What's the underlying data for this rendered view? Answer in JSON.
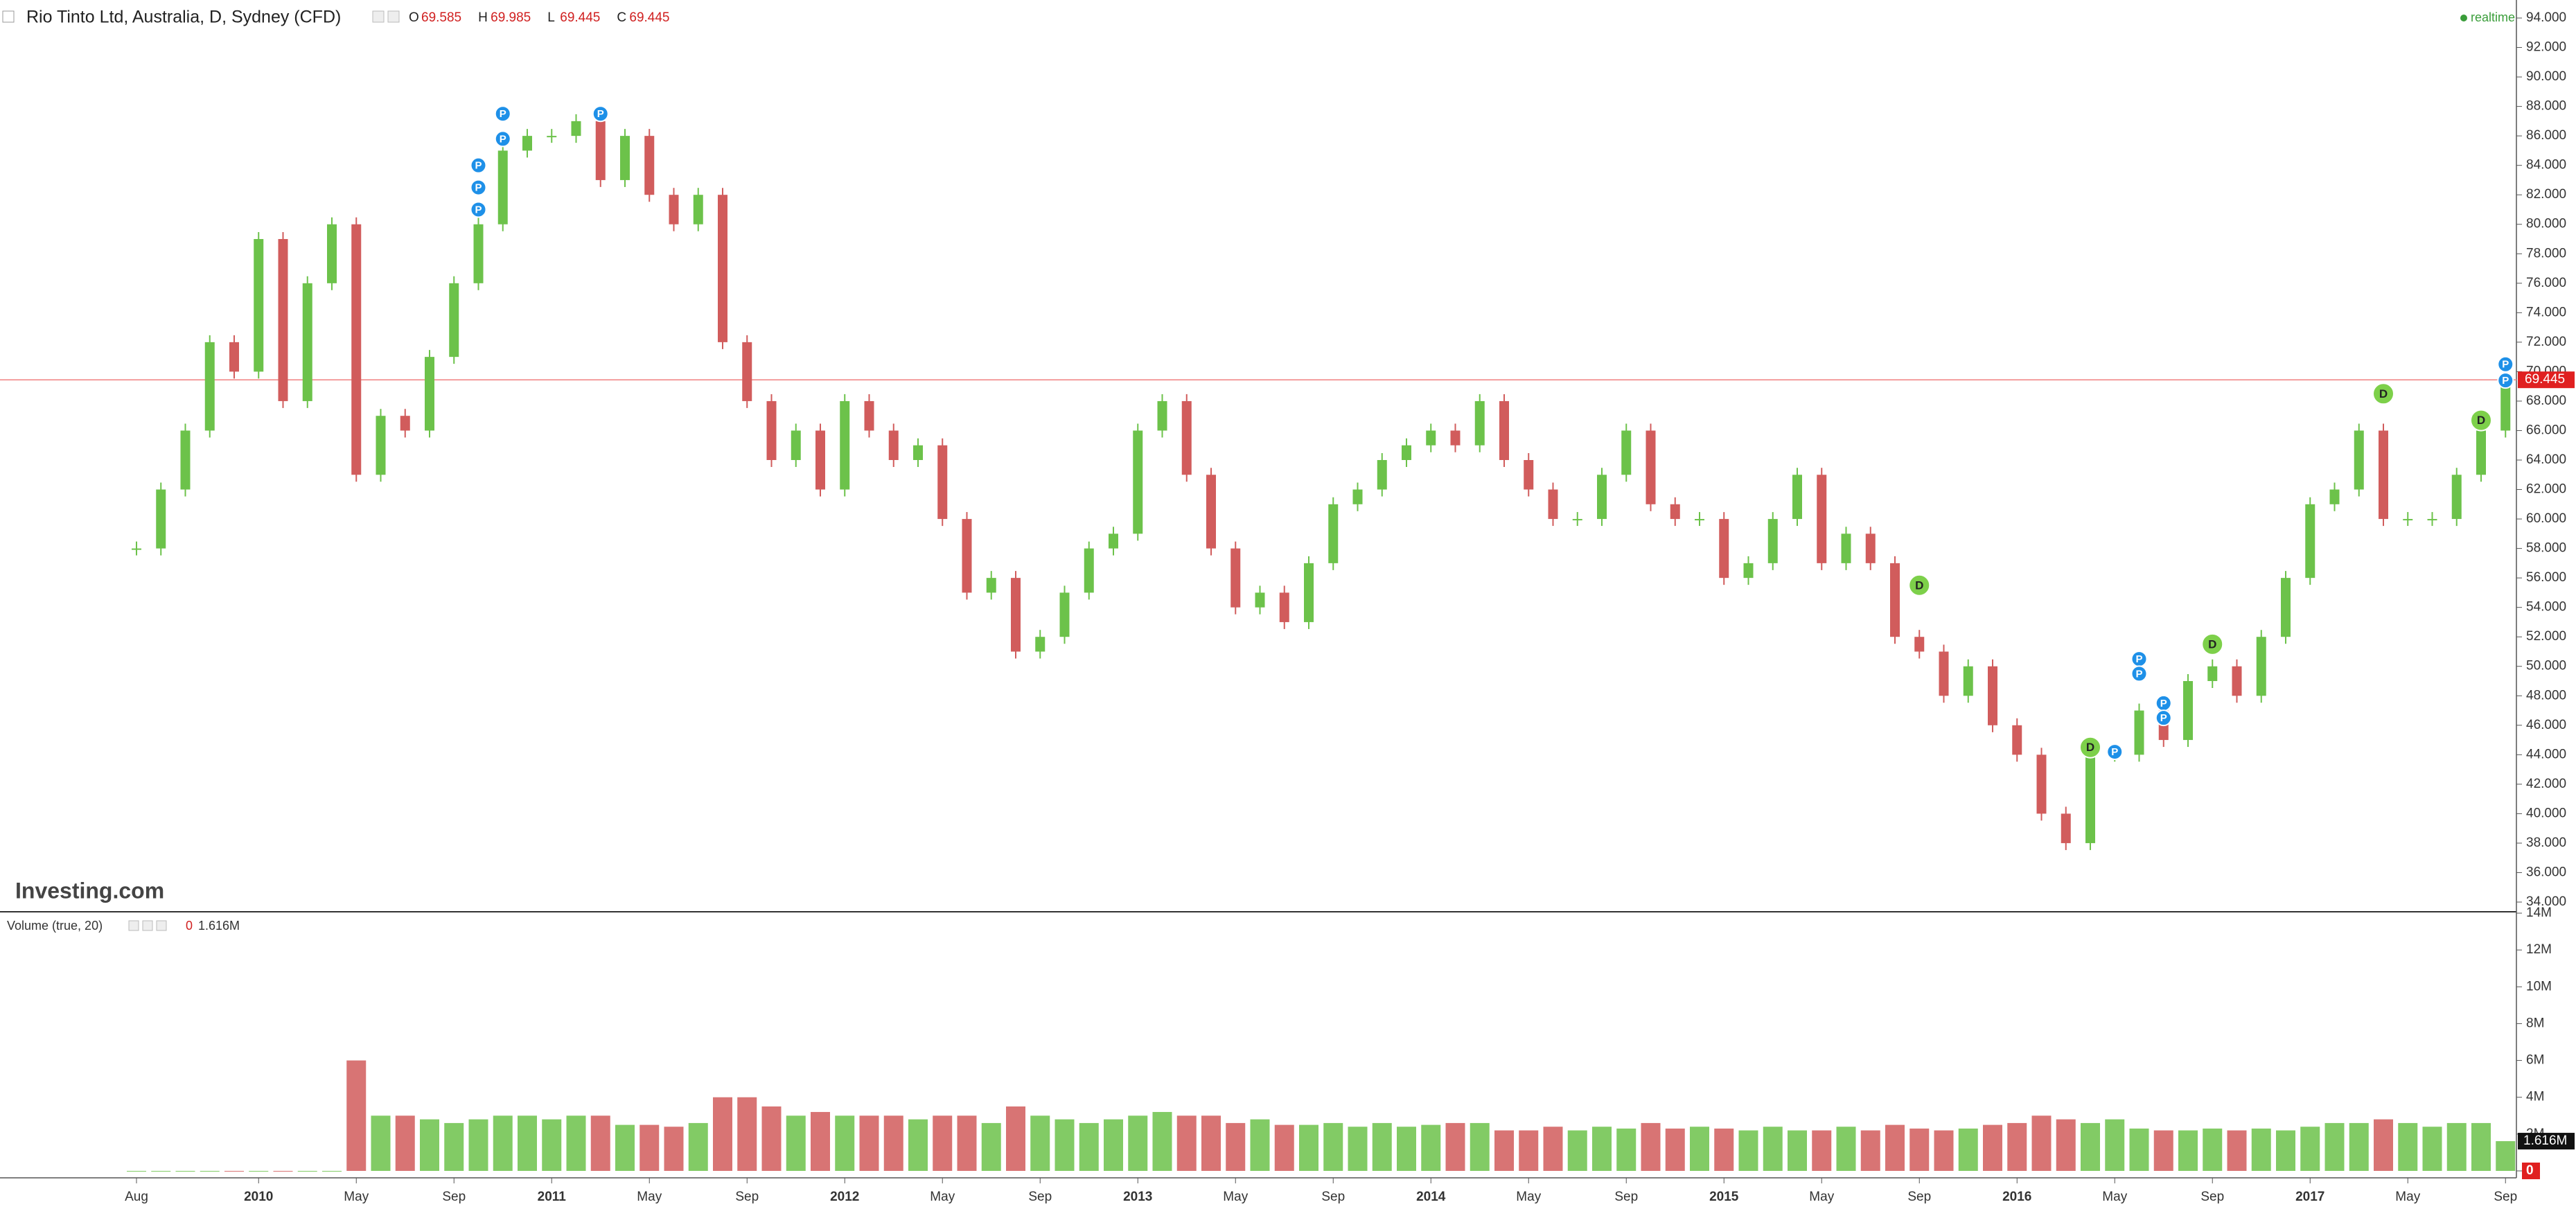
{
  "chart_data": {
    "type": "candlestick",
    "title": "Rio Tinto Ltd, Australia, D, Sydney (CFD)",
    "ohlc": [
      {
        "label": "O",
        "value": 69.585
      },
      {
        "label": "H",
        "value": 69.985
      },
      {
        "label": "L",
        "value": 69.445
      },
      {
        "label": "C",
        "value": 69.445
      }
    ],
    "status": "realtime",
    "logo": "Investing.com",
    "last_price": 69.445,
    "up_color": "#6cc24a",
    "down_color": "#d15c5c",
    "categories": [
      "Aug",
      null,
      null,
      null,
      null,
      "2010",
      null,
      null,
      null,
      "May",
      null,
      null,
      null,
      "Sep",
      null,
      null,
      null,
      "2011",
      null,
      null,
      null,
      "May",
      null,
      null,
      null,
      "Sep",
      null,
      null,
      null,
      "2012",
      null,
      null,
      null,
      "May",
      null,
      null,
      null,
      "Sep",
      null,
      null,
      null,
      "2013",
      null,
      null,
      null,
      "May",
      null,
      null,
      null,
      "Sep",
      null,
      null,
      null,
      "2014",
      null,
      null,
      null,
      "May",
      null,
      null,
      null,
      "Sep",
      null,
      null,
      null,
      "2015",
      null,
      null,
      null,
      "May",
      null,
      null,
      null,
      "Sep",
      null,
      null,
      null,
      "2016",
      null,
      null,
      null,
      "May",
      null,
      null,
      null,
      "Sep",
      null,
      null,
      null,
      "2017",
      null,
      null,
      null,
      "May",
      null,
      null,
      null,
      "Sep"
    ],
    "values": [
      58,
      62,
      66,
      72,
      70,
      79,
      68,
      76,
      80,
      63,
      67,
      66,
      71,
      76,
      80,
      85,
      86,
      86,
      87,
      83,
      86,
      82,
      80,
      82,
      72,
      68,
      64,
      66,
      62,
      68,
      66,
      64,
      65,
      60,
      55,
      56,
      51,
      52,
      55,
      58,
      59,
      66,
      68,
      63,
      58,
      54,
      55,
      53,
      57,
      61,
      62,
      64,
      65,
      66,
      65,
      68,
      64,
      62,
      60,
      60,
      63,
      66,
      61,
      60,
      60,
      56,
      57,
      60,
      63,
      57,
      59,
      57,
      52,
      51,
      48,
      50,
      46,
      44,
      40,
      38,
      44,
      44,
      47,
      45,
      49,
      50,
      48,
      52,
      56,
      61,
      62,
      66,
      60,
      60,
      60,
      63,
      66,
      69.445
    ],
    "ylim": [
      34,
      94
    ],
    "yticks": [
      {
        "value": 34,
        "label": "34.000"
      },
      {
        "value": 36,
        "label": "36.000"
      },
      {
        "value": 38,
        "label": "38.000"
      },
      {
        "value": 40,
        "label": "40.000"
      },
      {
        "value": 42,
        "label": "42.000"
      },
      {
        "value": 44,
        "label": "44.000"
      },
      {
        "value": 46,
        "label": "46.000"
      },
      {
        "value": 48,
        "label": "48.000"
      },
      {
        "value": 50,
        "label": "50.000"
      },
      {
        "value": 52,
        "label": "52.000"
      },
      {
        "value": 54,
        "label": "54.000"
      },
      {
        "value": 56,
        "label": "56.000"
      },
      {
        "value": 58,
        "label": "58.000"
      },
      {
        "value": 60,
        "label": "60.000"
      },
      {
        "value": 62,
        "label": "62.000"
      },
      {
        "value": 64,
        "label": "64.000"
      },
      {
        "value": 66,
        "label": "66.000"
      },
      {
        "value": 68,
        "label": "68.000"
      },
      {
        "value": 70,
        "label": "70.000"
      },
      {
        "value": 72,
        "label": "72.000"
      },
      {
        "value": 74,
        "label": "74.000"
      },
      {
        "value": 76,
        "label": "76.000"
      },
      {
        "value": 78,
        "label": "78.000"
      },
      {
        "value": 80,
        "label": "80.000"
      },
      {
        "value": 82,
        "label": "82.000"
      },
      {
        "value": 84,
        "label": "84.000"
      },
      {
        "value": 86,
        "label": "86.000"
      },
      {
        "value": 88,
        "label": "88.000"
      },
      {
        "value": 90,
        "label": "90.000"
      },
      {
        "value": 92,
        "label": "92.000"
      },
      {
        "value": 94,
        "label": "94.000"
      }
    ],
    "annotations": [
      {
        "text": "P",
        "month": 14,
        "value": 81
      },
      {
        "text": "P",
        "month": 14,
        "value": 82.5
      },
      {
        "text": "P",
        "month": 14,
        "value": 84
      },
      {
        "text": "P",
        "month": 15,
        "value": 85.8
      },
      {
        "text": "P",
        "month": 15,
        "value": 87.5
      },
      {
        "text": "P",
        "month": 19,
        "value": 87.5
      },
      {
        "text": "D",
        "month": 73,
        "value": 55.5
      },
      {
        "text": "D",
        "month": 80,
        "value": 44.5
      },
      {
        "text": "P",
        "month": 81,
        "value": 44.2
      },
      {
        "text": "P",
        "month": 82,
        "value": 50.5
      },
      {
        "text": "P",
        "month": 82,
        "value": 49.5
      },
      {
        "text": "P",
        "month": 83,
        "value": 47.5
      },
      {
        "text": "P",
        "month": 83,
        "value": 46.5
      },
      {
        "text": "D",
        "month": 85,
        "value": 51.5
      },
      {
        "text": "D",
        "month": 92,
        "value": 68.5
      },
      {
        "text": "D",
        "month": 96,
        "value": 66.7
      },
      {
        "text": "P",
        "month": 97,
        "value": 70.5
      },
      {
        "text": "P",
        "month": 97,
        "value": 69.4
      }
    ],
    "volume": {
      "label": "Volume (true, 20)",
      "legend_prefix": "0",
      "last": {
        "value": 1.616,
        "label": "1.616M"
      },
      "values": [
        0,
        0,
        0,
        0,
        0,
        0,
        0,
        0,
        0,
        6,
        3,
        3,
        2.8,
        2.6,
        2.8,
        3,
        3,
        2.8,
        3,
        3,
        2.5,
        2.5,
        2.4,
        2.6,
        4,
        4,
        3.5,
        3,
        3.2,
        3,
        3,
        3,
        2.8,
        3,
        3,
        2.6,
        3.5,
        3,
        2.8,
        2.6,
        2.8,
        3,
        3.2,
        3,
        3,
        2.6,
        2.8,
        2.5,
        2.5,
        2.6,
        2.4,
        2.6,
        2.4,
        2.5,
        2.6,
        2.6,
        2.2,
        2.2,
        2.4,
        2.2,
        2.4,
        2.3,
        2.6,
        2.3,
        2.4,
        2.3,
        2.2,
        2.4,
        2.2,
        2.2,
        2.4,
        2.2,
        2.5,
        2.3,
        2.2,
        2.3,
        2.5,
        2.6,
        3,
        2.8,
        2.6,
        2.8,
        2.3,
        2.2,
        2.2,
        2.3,
        2.2,
        2.3,
        2.2,
        2.4,
        2.6,
        2.6,
        2.8,
        2.6,
        2.4,
        2.6,
        2.6,
        1.616
      ],
      "ylim": [
        0,
        14
      ],
      "yticks": [
        0,
        {
          "value": 2,
          "label": "2M"
        },
        {
          "value": 4,
          "label": "4M"
        },
        {
          "value": 6,
          "label": "6M"
        },
        {
          "value": 8,
          "label": "8M"
        },
        {
          "value": 10,
          "label": "10M"
        },
        {
          "value": 12,
          "label": "12M"
        },
        {
          "value": 14,
          "label": "14M"
        }
      ]
    }
  }
}
